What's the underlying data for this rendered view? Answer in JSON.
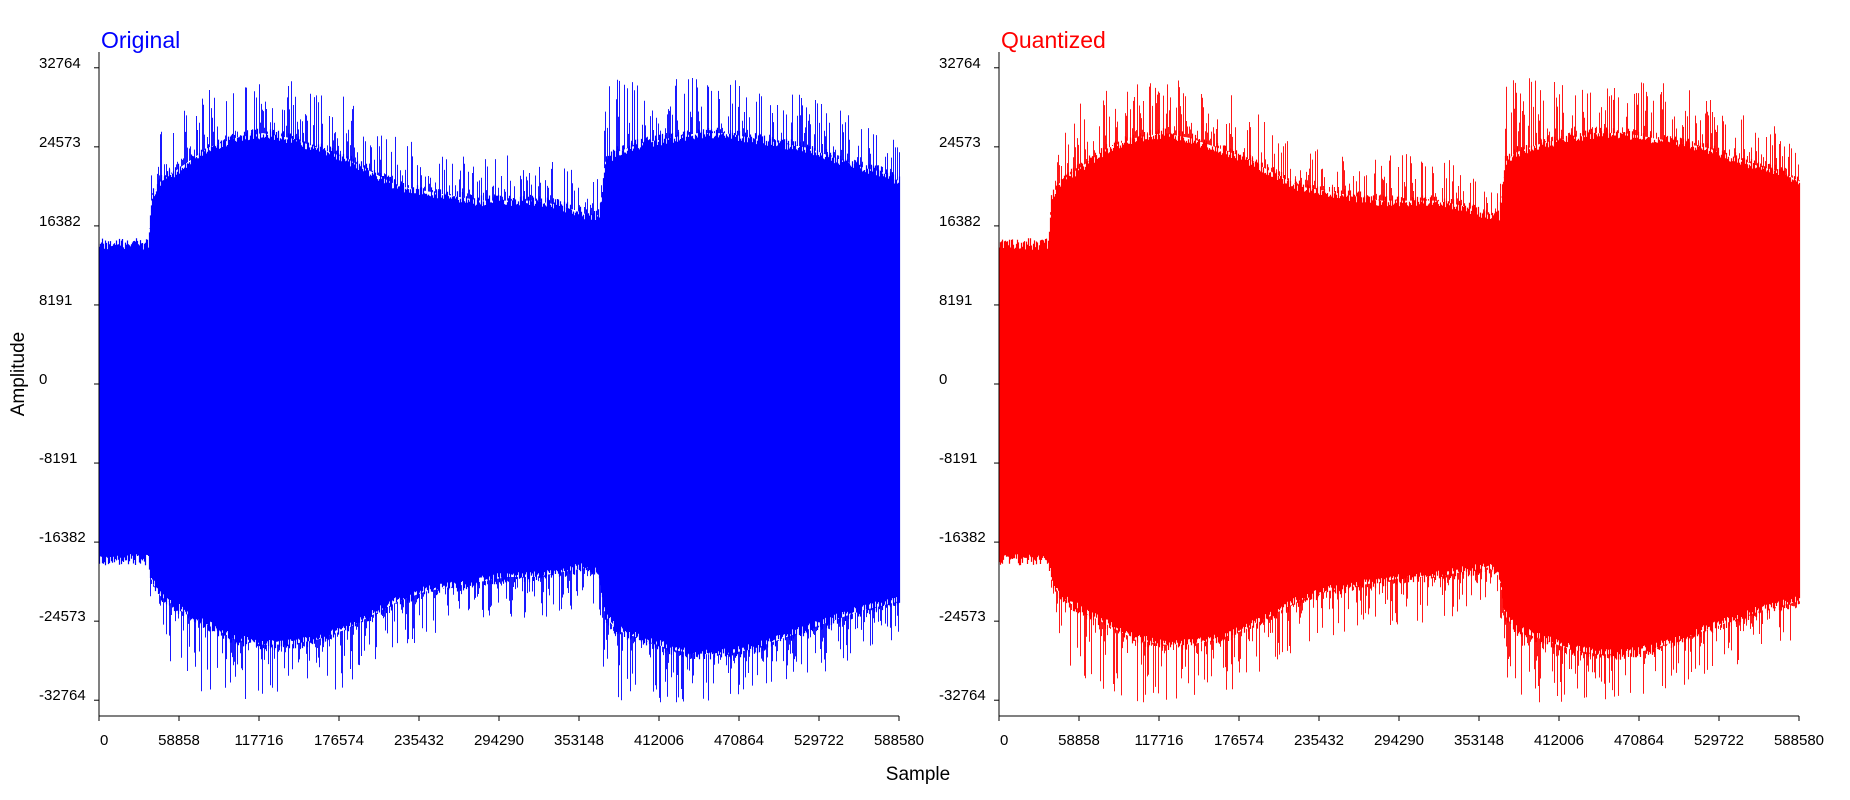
{
  "xlabel": "Sample",
  "ylabel": "Amplitude",
  "chart_data": [
    {
      "type": "area",
      "title": "Original",
      "color": "#0000ff",
      "xlim": [
        0,
        588580
      ],
      "ylim": [
        -32764,
        32764
      ],
      "x_ticks": [
        0,
        58858,
        117716,
        176574,
        235432,
        294290,
        353148,
        412006,
        470864,
        529722,
        588580
      ],
      "x_tick_labels": [
        "0",
        "58858",
        "117716",
        "176574",
        "235432",
        "294290",
        "353148",
        "412006",
        "470864",
        "529722",
        "588580"
      ],
      "y_ticks": [
        32764,
        24573,
        16382,
        8191,
        0,
        -8191,
        -16382,
        -24573,
        -32764
      ],
      "y_tick_labels": [
        "32764",
        "24573",
        "16382",
        "8191",
        "0",
        "-8191",
        "-16382",
        "-24573",
        "-32764"
      ],
      "envelope": {
        "x": [
          0,
          36000,
          38500,
          45000,
          60000,
          80000,
          100000,
          120000,
          140000,
          160000,
          180000,
          200000,
          220000,
          240000,
          260000,
          280000,
          300000,
          320000,
          340000,
          360000,
          368000,
          372000,
          380000,
          400000,
          420000,
          440000,
          460000,
          480000,
          500000,
          520000,
          540000,
          560000,
          575000,
          588580
        ],
        "upper": [
          14500,
          14500,
          19500,
          21000,
          22500,
          24500,
          25500,
          26000,
          25500,
          24500,
          23500,
          22000,
          20500,
          20000,
          19500,
          19000,
          19000,
          19000,
          18500,
          17500,
          17500,
          23000,
          24000,
          25000,
          25500,
          26000,
          26000,
          25500,
          25000,
          24500,
          23500,
          22500,
          22000,
          21000
        ],
        "lower": [
          -18200,
          -18200,
          -20500,
          -22000,
          -23500,
          -25000,
          -26500,
          -27000,
          -27000,
          -26500,
          -25500,
          -24000,
          -22500,
          -21500,
          -21000,
          -20500,
          -20000,
          -20000,
          -19500,
          -19000,
          -20000,
          -24000,
          -25500,
          -26500,
          -27500,
          -28000,
          -28000,
          -27500,
          -26500,
          -25500,
          -24500,
          -23500,
          -23000,
          -22500
        ],
        "peak_max": [
          14500,
          14600,
          23000,
          27000,
          29500,
          30500,
          31000,
          32000,
          31500,
          30500,
          30000,
          27500,
          25500,
          25000,
          24000,
          23500,
          24000,
          23500,
          23000,
          21000,
          21500,
          31500,
          32000,
          32000,
          31500,
          32000,
          31500,
          31500,
          31000,
          30000,
          29000,
          28000,
          27000,
          26000
        ],
        "peak_min": [
          -18200,
          -18300,
          -25000,
          -28500,
          -31000,
          -32500,
          -33000,
          -33000,
          -32500,
          -32000,
          -31500,
          -29500,
          -27500,
          -26500,
          -25500,
          -25000,
          -25000,
          -24500,
          -24000,
          -22500,
          -23500,
          -32000,
          -33000,
          -33000,
          -33000,
          -33000,
          -32500,
          -32000,
          -31500,
          -30500,
          -29500,
          -28000,
          -27000,
          -26500
        ]
      }
    },
    {
      "type": "area",
      "title": "Quantized",
      "color": "#ff0000",
      "xlim": [
        0,
        588580
      ],
      "ylim": [
        -32764,
        32764
      ],
      "x_ticks": [
        0,
        58858,
        117716,
        176574,
        235432,
        294290,
        353148,
        412006,
        470864,
        529722,
        588580
      ],
      "x_tick_labels": [
        "0",
        "58858",
        "117716",
        "176574",
        "235432",
        "294290",
        "353148",
        "412006",
        "470864",
        "529722",
        "588580"
      ],
      "y_ticks": [
        32764,
        24573,
        16382,
        8191,
        0,
        -8191,
        -16382,
        -24573,
        -32764
      ],
      "y_tick_labels": [
        "32764",
        "24573",
        "16382",
        "8191",
        "0",
        "-8191",
        "-16382",
        "-24573",
        "-32764"
      ],
      "envelope": {
        "x": [
          0,
          36000,
          38500,
          45000,
          60000,
          80000,
          100000,
          120000,
          140000,
          160000,
          180000,
          200000,
          220000,
          240000,
          260000,
          280000,
          300000,
          320000,
          340000,
          360000,
          368000,
          372000,
          380000,
          400000,
          420000,
          440000,
          460000,
          480000,
          500000,
          520000,
          540000,
          560000,
          575000,
          588580
        ],
        "upper": [
          14500,
          14500,
          19500,
          21000,
          22500,
          24500,
          25500,
          26000,
          25500,
          24500,
          23500,
          22000,
          20500,
          20000,
          19500,
          19000,
          19000,
          19000,
          18500,
          17500,
          17500,
          23000,
          24000,
          25000,
          25500,
          26000,
          26000,
          25500,
          25000,
          24500,
          23500,
          22500,
          22000,
          21000
        ],
        "lower": [
          -18200,
          -18200,
          -20500,
          -22000,
          -23500,
          -25000,
          -26500,
          -27000,
          -27000,
          -26500,
          -25500,
          -24000,
          -22500,
          -21500,
          -21000,
          -20500,
          -20000,
          -20000,
          -19500,
          -19000,
          -20000,
          -24000,
          -25500,
          -26500,
          -27500,
          -28000,
          -28000,
          -27500,
          -26500,
          -25500,
          -24500,
          -23500,
          -23000,
          -22500
        ],
        "peak_max": [
          14500,
          14600,
          23000,
          27000,
          29500,
          30500,
          31000,
          32000,
          31500,
          30500,
          30000,
          27500,
          25500,
          25000,
          24000,
          23500,
          24000,
          23500,
          23000,
          21000,
          21500,
          31500,
          32000,
          32000,
          31500,
          32000,
          31500,
          31500,
          31000,
          30000,
          29000,
          28000,
          27000,
          26000
        ],
        "peak_min": [
          -18200,
          -18300,
          -25000,
          -28500,
          -31000,
          -32500,
          -33000,
          -33000,
          -32500,
          -32000,
          -31500,
          -29500,
          -27500,
          -26500,
          -25500,
          -25000,
          -25000,
          -24500,
          -24000,
          -22500,
          -23500,
          -32000,
          -33000,
          -33000,
          -33000,
          -33000,
          -32500,
          -32000,
          -31500,
          -30500,
          -29500,
          -28000,
          -27000,
          -26500
        ]
      }
    }
  ]
}
